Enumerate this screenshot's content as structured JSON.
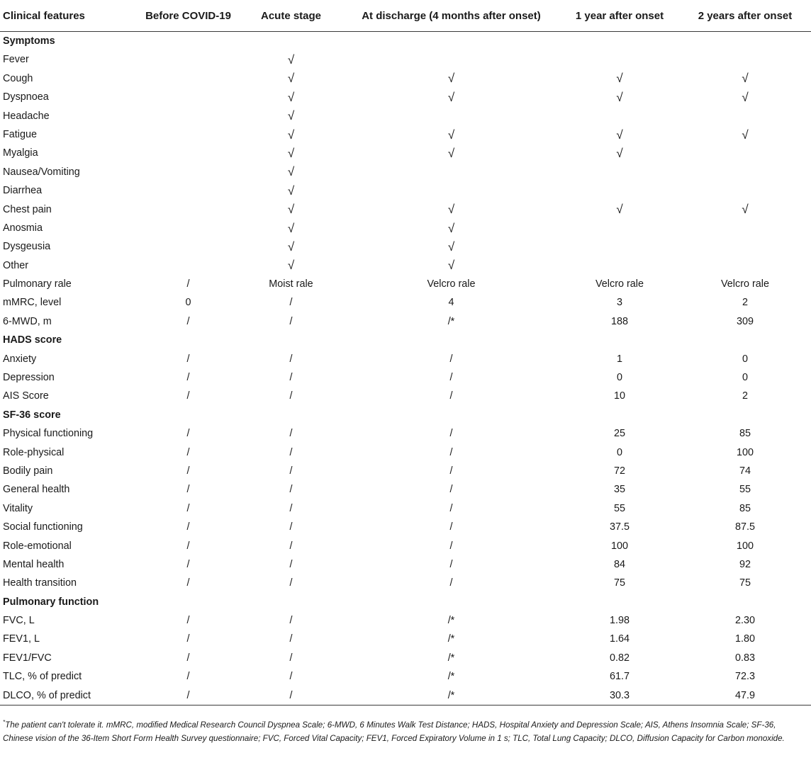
{
  "table": {
    "headers": [
      "Clinical features",
      "Before COVID-19",
      "Acute stage",
      "At discharge (4 months after onset)",
      "1 year after onset",
      "2 years after onset"
    ],
    "rows": [
      {
        "section": true,
        "cells": [
          "Symptoms",
          "",
          "",
          "",
          "",
          ""
        ]
      },
      {
        "section": false,
        "cells": [
          "Fever",
          "",
          "√",
          "",
          "",
          ""
        ]
      },
      {
        "section": false,
        "cells": [
          "Cough",
          "",
          "√",
          "√",
          "√",
          "√"
        ]
      },
      {
        "section": false,
        "cells": [
          "Dyspnoea",
          "",
          "√",
          "√",
          "√",
          "√"
        ]
      },
      {
        "section": false,
        "cells": [
          "Headache",
          "",
          "√",
          "",
          "",
          ""
        ]
      },
      {
        "section": false,
        "cells": [
          "Fatigue",
          "",
          "√",
          "√",
          "√",
          "√"
        ]
      },
      {
        "section": false,
        "cells": [
          "Myalgia",
          "",
          "√",
          "√",
          "√",
          ""
        ]
      },
      {
        "section": false,
        "cells": [
          "Nausea/Vomiting",
          "",
          "√",
          "",
          "",
          ""
        ]
      },
      {
        "section": false,
        "cells": [
          "Diarrhea",
          "",
          "√",
          "",
          "",
          ""
        ]
      },
      {
        "section": false,
        "cells": [
          "Chest pain",
          "",
          "√",
          "√",
          "√",
          "√"
        ]
      },
      {
        "section": false,
        "cells": [
          "Anosmia",
          "",
          "√",
          "√",
          "",
          ""
        ]
      },
      {
        "section": false,
        "cells": [
          "Dysgeusia",
          "",
          "√",
          "√",
          "",
          ""
        ]
      },
      {
        "section": false,
        "cells": [
          "Other",
          "",
          "√",
          "√",
          "",
          ""
        ]
      },
      {
        "section": false,
        "cells": [
          "Pulmonary rale",
          "/",
          "Moist rale",
          "Velcro rale",
          "Velcro rale",
          "Velcro rale"
        ]
      },
      {
        "section": false,
        "cells": [
          "mMRC, level",
          "0",
          "/",
          "4",
          "3",
          "2"
        ]
      },
      {
        "section": false,
        "cells": [
          "6-MWD, m",
          "/",
          "/",
          "/*",
          "188",
          "309"
        ]
      },
      {
        "section": true,
        "cells": [
          "HADS score",
          "",
          "",
          "",
          "",
          ""
        ]
      },
      {
        "section": false,
        "cells": [
          "Anxiety",
          "/",
          "/",
          "/",
          "1",
          "0"
        ]
      },
      {
        "section": false,
        "cells": [
          "Depression",
          "/",
          "/",
          "/",
          "0",
          "0"
        ]
      },
      {
        "section": false,
        "cells": [
          "AIS Score",
          "/",
          "/",
          "/",
          "10",
          "2"
        ]
      },
      {
        "section": true,
        "cells": [
          "SF-36 score",
          "",
          "",
          "",
          "",
          ""
        ]
      },
      {
        "section": false,
        "cells": [
          "Physical functioning",
          "/",
          "/",
          "/",
          "25",
          "85"
        ]
      },
      {
        "section": false,
        "cells": [
          "Role-physical",
          "/",
          "/",
          "/",
          "0",
          "100"
        ]
      },
      {
        "section": false,
        "cells": [
          "Bodily pain",
          "/",
          "/",
          "/",
          "72",
          "74"
        ]
      },
      {
        "section": false,
        "cells": [
          "General health",
          "/",
          "/",
          "/",
          "35",
          "55"
        ]
      },
      {
        "section": false,
        "cells": [
          "Vitality",
          "/",
          "/",
          "/",
          "55",
          "85"
        ]
      },
      {
        "section": false,
        "cells": [
          "Social functioning",
          "/",
          "/",
          "/",
          "37.5",
          "87.5"
        ]
      },
      {
        "section": false,
        "cells": [
          "Role-emotional",
          "/",
          "/",
          "/",
          "100",
          "100"
        ]
      },
      {
        "section": false,
        "cells": [
          "Mental health",
          "/",
          "/",
          "/",
          "84",
          "92"
        ]
      },
      {
        "section": false,
        "cells": [
          "Health transition",
          "/",
          "/",
          "/",
          "75",
          "75"
        ]
      },
      {
        "section": true,
        "cells": [
          "Pulmonary function",
          "",
          "",
          "",
          "",
          ""
        ]
      },
      {
        "section": false,
        "cells": [
          "FVC, L",
          "/",
          "/",
          "/*",
          "1.98",
          "2.30"
        ]
      },
      {
        "section": false,
        "cells": [
          "FEV1, L",
          "/",
          "/",
          "/*",
          "1.64",
          "1.80"
        ]
      },
      {
        "section": false,
        "cells": [
          "FEV1/FVC",
          "/",
          "/",
          "/*",
          "0.82",
          "0.83"
        ]
      },
      {
        "section": false,
        "cells": [
          "TLC, % of predict",
          "/",
          "/",
          "/*",
          "61.7",
          "72.3"
        ]
      },
      {
        "section": false,
        "cells": [
          "DLCO, % of predict",
          "/",
          "/",
          "/*",
          "30.3",
          "47.9"
        ]
      }
    ]
  },
  "footnote": {
    "marker": "*",
    "text": "The patient can't tolerate it. mMRC, modified Medical Research Council Dyspnea Scale; 6-MWD, 6 Minutes Walk Test Distance; HADS, Hospital Anxiety and Depression Scale; AIS, Athens Insomnia Scale; SF-36, Chinese vision of the 36-Item Short Form Health Survey questionnaire; FVC, Forced Vital Capacity; FEV1, Forced Expiratory Volume in 1 s; TLC, Total Lung Capacity; DLCO, Diffusion Capacity for Carbon monoxide."
  }
}
